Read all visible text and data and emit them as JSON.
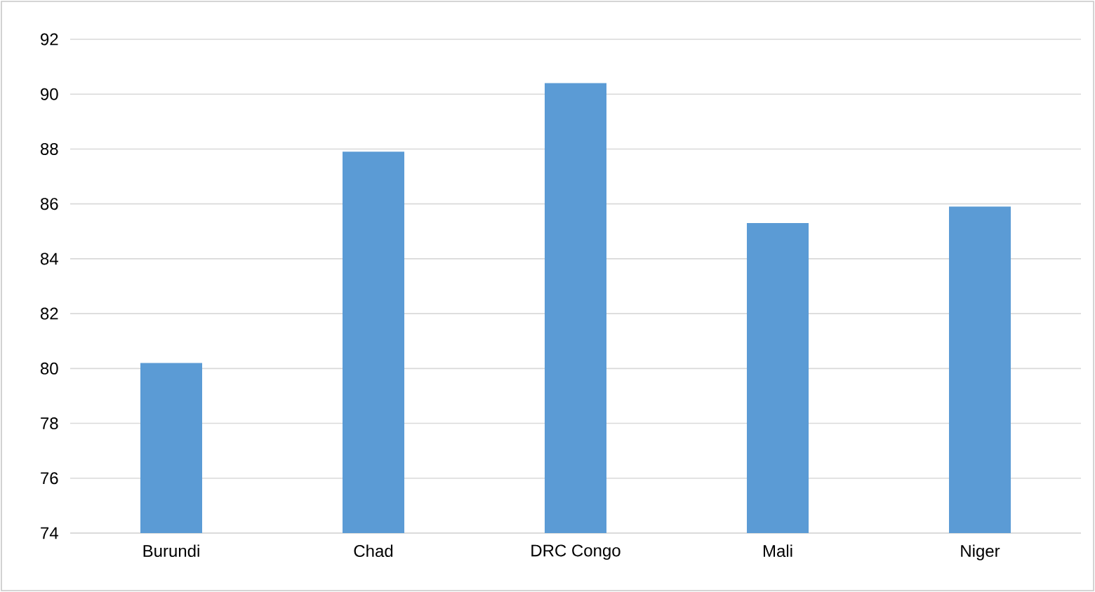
{
  "chart_data": {
    "type": "bar",
    "categories": [
      "Burundi",
      "Chad",
      "DRC Congo",
      "Mali",
      "Niger"
    ],
    "values": [
      80.2,
      87.9,
      90.4,
      85.3,
      85.9
    ],
    "color": "#5b9bd5",
    "ylim": [
      74,
      92
    ],
    "yticks": [
      74,
      76,
      78,
      80,
      82,
      84,
      86,
      88,
      90,
      92
    ],
    "grid": "y"
  }
}
